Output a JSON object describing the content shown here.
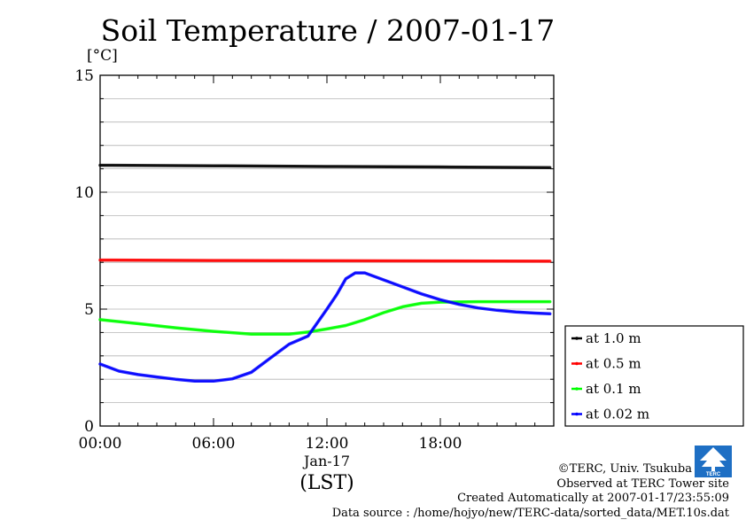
{
  "chart_data": {
    "type": "line",
    "title": "Soil Temperature / 2007-01-17",
    "ylabel": "[°C]",
    "xlabel_date": "Jan-17",
    "xlabel_tz": "(LST)",
    "ylim": [
      0,
      15
    ],
    "xlim_hours": [
      0,
      24
    ],
    "y_ticks": [
      "0",
      "5",
      "10",
      "15"
    ],
    "x_ticks": [
      {
        "hour": 0,
        "label": "00:00"
      },
      {
        "hour": 6,
        "label": "06:00"
      },
      {
        "hour": 12,
        "label": "12:00"
      },
      {
        "hour": 18,
        "label": "18:00"
      }
    ],
    "grid": "horizontal",
    "legend_position": "right",
    "series": [
      {
        "name": "at 1.0 m",
        "color": "#000000",
        "x": [
          0,
          6,
          12,
          18,
          23.8
        ],
        "values": [
          11.15,
          11.13,
          11.1,
          11.08,
          11.05
        ]
      },
      {
        "name": "at 0.5 m",
        "color": "#ff0000",
        "x": [
          0,
          6,
          12,
          18,
          23.8
        ],
        "values": [
          7.1,
          7.08,
          7.07,
          7.06,
          7.05
        ]
      },
      {
        "name": "at 0.1 m",
        "color": "#00ff00",
        "x": [
          0,
          2,
          4,
          6,
          8,
          10,
          11,
          12,
          13,
          14,
          15,
          16,
          17,
          18,
          20,
          22,
          23.8
        ],
        "values": [
          4.55,
          4.38,
          4.2,
          4.05,
          3.93,
          3.93,
          4.02,
          4.15,
          4.3,
          4.55,
          4.85,
          5.1,
          5.25,
          5.3,
          5.32,
          5.32,
          5.32
        ]
      },
      {
        "name": "at 0.02 m",
        "color": "#0000ff",
        "x": [
          0,
          1,
          2,
          3,
          4,
          5,
          6,
          7,
          8,
          9,
          10,
          11,
          12,
          12.5,
          13,
          13.5,
          14,
          15,
          16,
          17,
          18,
          19,
          20,
          21,
          22,
          23,
          23.8
        ],
        "values": [
          2.65,
          2.35,
          2.2,
          2.1,
          2.0,
          1.92,
          1.92,
          2.02,
          2.3,
          2.9,
          3.5,
          3.85,
          5.0,
          5.6,
          6.3,
          6.55,
          6.55,
          6.25,
          5.95,
          5.65,
          5.4,
          5.2,
          5.05,
          4.95,
          4.88,
          4.83,
          4.8
        ]
      }
    ]
  },
  "credits": {
    "copyright": "©TERC, Univ. Tsukuba",
    "observed": "Observed at TERC Tower site",
    "created": "Created Automatically at 2007-01-17/23:55:09",
    "source": "Data source : /home/hojyo/new/TERC-data/sorted_data/MET.10s.dat",
    "logo_text": "TERC"
  }
}
